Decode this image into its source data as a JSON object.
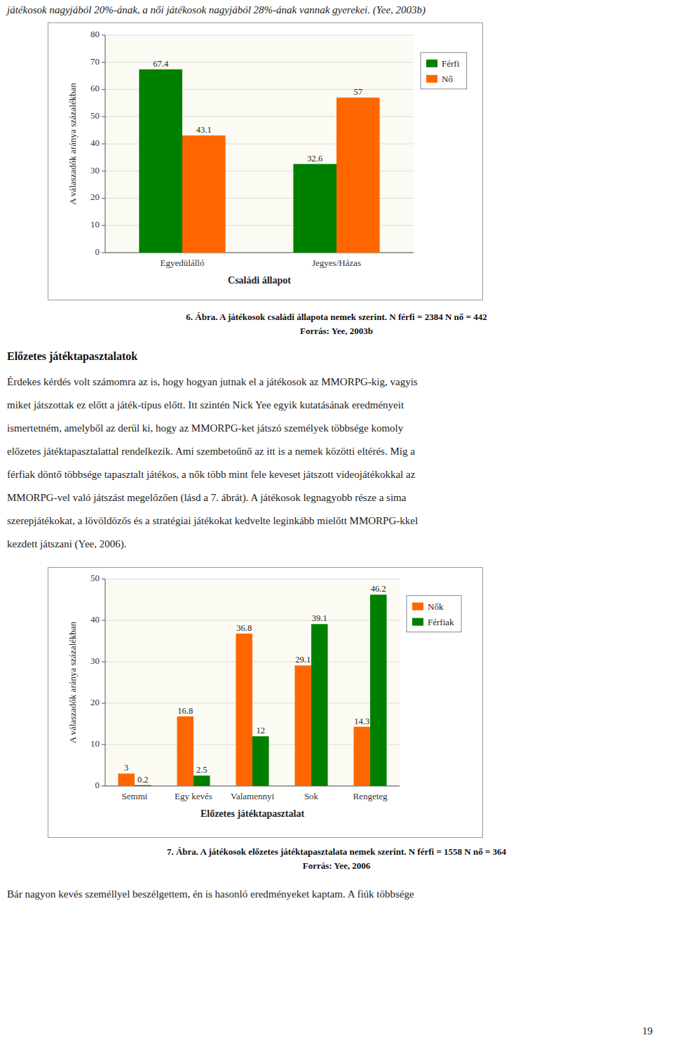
{
  "page": {
    "text_top": "játékosok nagyjából 20%-ának, a női játékosok nagyjából 28%-ának vannak gyerekei. (Yee, 2003b)",
    "section_title": "Előzetes játéktapasztalatok",
    "body": [
      "Érdekes kérdés volt számomra az is, hogy hogyan jutnak el a játékosok az MMORPG-kig, vagyis",
      "miket játszottak ez előtt a játék-típus előtt. Itt szintén Nick Yee egyik kutatásának eredményeit",
      "ismertetném, amelyből az derül ki, hogy az MMORPG-ket játszó személyek többsége komoly",
      "előzetes játéktapasztalattal rendelkezik. Ami szembetoűnő az itt is a nemek közötti eltérés. Míg a",
      "férfiak döntő többsége tapasztalt játékos, a nők több mint fele keveset játszott videojátékokkal az",
      "MMORPG-vel való játszást megelőzően (lásd a 7. ábrát). A játékosok legnagyobb része a sima",
      "szerepjátékokat, a lövöldözős és a stratégiai játékokat kedvelte leginkább mielőtt MMORPG-kkel",
      "kezdett játszani (Yee, 2006)."
    ],
    "bottom_text": "Bár nagyon kevés személlyel beszélgettem, én is hasonló eredményeket kaptam. A fiúk többsége",
    "page_number": "19"
  },
  "chart_data": [
    {
      "type": "bar",
      "title": "6. Ábra. A játékosok családi állapota nemek szerint. N férfi = 2384 N nő = 442",
      "subtitle": "Forrás: Yee, 2003b",
      "categories": [
        "Egyedülálló",
        "Jegyes/Házas"
      ],
      "series": [
        {
          "name": "Férfi",
          "color": "#008000",
          "values": [
            67.4,
            32.6
          ]
        },
        {
          "name": "Nő",
          "color": "#FF6600",
          "values": [
            43.1,
            57
          ]
        }
      ],
      "xlabel": "Családi állapot",
      "ylabel": "A válaszadók aránya százalékban",
      "ylim": [
        0,
        80
      ],
      "yticks": [
        0,
        10,
        20,
        30,
        40,
        50,
        60,
        70,
        80
      ],
      "grid": true,
      "legend": "right",
      "data_labels": true
    },
    {
      "type": "bar",
      "title": "7. Ábra. A játékosok előzetes játéktapasztalata nemek szerint. N férfi = 1558 N nő = 364",
      "subtitle": "Forrás: Yee, 2006",
      "categories": [
        "Semmi",
        "Egy kevés",
        "Valamennyi",
        "Sok",
        "Rengeteg"
      ],
      "series": [
        {
          "name": "Nők",
          "color": "#FF6600",
          "values": [
            3.0,
            16.8,
            36.8,
            29.1,
            14.3
          ]
        },
        {
          "name": "Férfiak",
          "color": "#008000",
          "values": [
            0.2,
            2.5,
            12.0,
            39.1,
            46.2
          ]
        }
      ],
      "xlabel": "Előzetes játéktapasztalat",
      "ylabel": "A válaszadók aránya százalékban",
      "ylim": [
        0,
        50
      ],
      "yticks": [
        0,
        10,
        20,
        30,
        40,
        50
      ],
      "grid": true,
      "legend": "right",
      "data_labels": true
    }
  ]
}
